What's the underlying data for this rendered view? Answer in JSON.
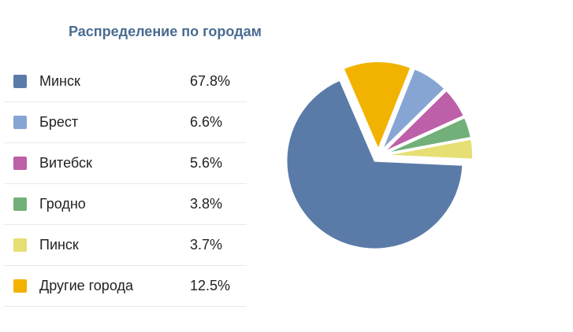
{
  "chart_data": {
    "type": "pie",
    "title": "Распределение по городам",
    "categories": [
      "Минск",
      "Брест",
      "Витебск",
      "Гродно",
      "Пинск",
      "Другие города"
    ],
    "values": [
      67.8,
      6.6,
      5.6,
      3.8,
      3.7,
      12.5
    ],
    "labels": [
      "67.8%",
      "6.6%",
      "5.6%",
      "3.8%",
      "3.7%",
      "12.5%"
    ],
    "colors": [
      "#5a7ba8",
      "#86a5d3",
      "#bd5fa9",
      "#72b07a",
      "#e6df73",
      "#f2b300"
    ],
    "legend": "left",
    "exploded": true
  }
}
